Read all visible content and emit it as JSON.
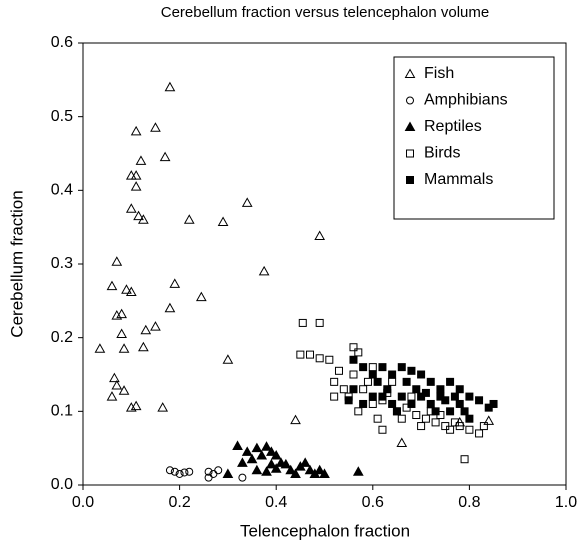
{
  "chart_data": {
    "type": "scatter",
    "title": "Cerebellum fraction versus telencephalon volume",
    "xlabel": "Telencephalon fraction",
    "ylabel": "Cerebellum fraction",
    "xlim": [
      0,
      1
    ],
    "ylim": [
      0,
      0.6
    ],
    "xticks": [
      {
        "value": 0,
        "label": "0.0"
      },
      0.2,
      0.4,
      0.6,
      0.8,
      {
        "value": 1,
        "label": "1.0"
      }
    ],
    "yticks": [
      {
        "value": 0,
        "label": "0.0"
      },
      0.1,
      0.2,
      0.3,
      0.4,
      0.5,
      0.6
    ],
    "grid": false,
    "legend": "upper right",
    "series": [
      {
        "name": "Fish",
        "marker": "triangle",
        "color": "#000000",
        "fill": "none",
        "x": [
          0.18,
          0.15,
          0.11,
          0.12,
          0.17,
          0.1,
          0.11,
          0.11,
          0.1,
          0.115,
          0.125,
          0.22,
          0.29,
          0.34,
          0.49,
          0.07,
          0.375,
          0.06,
          0.19,
          0.09,
          0.1,
          0.08,
          0.07,
          0.18,
          0.245,
          0.15,
          0.13,
          0.08,
          0.035,
          0.085,
          0.125,
          0.3,
          0.065,
          0.07,
          0.085,
          0.06,
          0.1,
          0.11,
          0.165,
          0.44,
          0.66,
          0.84,
          0.78
        ],
        "values": [
          0.54,
          0.485,
          0.48,
          0.44,
          0.445,
          0.42,
          0.42,
          0.405,
          0.375,
          0.365,
          0.36,
          0.36,
          0.357,
          0.383,
          0.338,
          0.303,
          0.29,
          0.27,
          0.273,
          0.265,
          0.262,
          0.232,
          0.23,
          0.24,
          0.255,
          0.215,
          0.21,
          0.205,
          0.185,
          0.185,
          0.187,
          0.17,
          0.145,
          0.135,
          0.128,
          0.12,
          0.105,
          0.107,
          0.105,
          0.088,
          0.057,
          0.087,
          0.085
        ]
      },
      {
        "name": "Amphibians",
        "marker": "circle",
        "color": "#000000",
        "fill": "none",
        "x": [
          0.18,
          0.19,
          0.21,
          0.22,
          0.26,
          0.27,
          0.28,
          0.26,
          0.33,
          0.2
        ],
        "values": [
          0.02,
          0.018,
          0.017,
          0.018,
          0.01,
          0.015,
          0.02,
          0.018,
          0.01,
          0.015
        ]
      },
      {
        "name": "Reptiles",
        "marker": "triangle",
        "color": "#000000",
        "fill": "#000000",
        "x": [
          0.32,
          0.34,
          0.36,
          0.38,
          0.39,
          0.37,
          0.35,
          0.33,
          0.4,
          0.41,
          0.42,
          0.36,
          0.38,
          0.4,
          0.43,
          0.45,
          0.47,
          0.48,
          0.49,
          0.44,
          0.5,
          0.57,
          0.3,
          0.39,
          0.46
        ],
        "values": [
          0.053,
          0.045,
          0.05,
          0.052,
          0.045,
          0.04,
          0.035,
          0.03,
          0.04,
          0.03,
          0.028,
          0.02,
          0.018,
          0.022,
          0.02,
          0.025,
          0.02,
          0.015,
          0.02,
          0.015,
          0.015,
          0.018,
          0.015,
          0.028,
          0.03
        ]
      },
      {
        "name": "Birds",
        "marker": "square",
        "color": "#000000",
        "fill": "none",
        "x": [
          0.455,
          0.49,
          0.45,
          0.47,
          0.49,
          0.51,
          0.56,
          0.57,
          0.6,
          0.52,
          0.54,
          0.55,
          0.52,
          0.58,
          0.6,
          0.62,
          0.63,
          0.65,
          0.66,
          0.68,
          0.7,
          0.72,
          0.74,
          0.75,
          0.76,
          0.78,
          0.8,
          0.82,
          0.79,
          0.62,
          0.56,
          0.59,
          0.64,
          0.67,
          0.71,
          0.57,
          0.61,
          0.77,
          0.69,
          0.53,
          0.83,
          0.73
        ],
        "values": [
          0.22,
          0.22,
          0.177,
          0.177,
          0.172,
          0.17,
          0.187,
          0.18,
          0.16,
          0.14,
          0.13,
          0.12,
          0.12,
          0.13,
          0.11,
          0.115,
          0.125,
          0.1,
          0.09,
          0.12,
          0.08,
          0.1,
          0.095,
          0.08,
          0.075,
          0.08,
          0.075,
          0.07,
          0.035,
          0.075,
          0.15,
          0.14,
          0.14,
          0.105,
          0.09,
          0.1,
          0.09,
          0.085,
          0.095,
          0.155,
          0.08,
          0.085
        ]
      },
      {
        "name": "Mammals",
        "marker": "square",
        "color": "#000000",
        "fill": "#000000",
        "x": [
          0.56,
          0.58,
          0.6,
          0.62,
          0.64,
          0.66,
          0.68,
          0.7,
          0.72,
          0.74,
          0.76,
          0.78,
          0.8,
          0.82,
          0.85,
          0.62,
          0.64,
          0.66,
          0.68,
          0.7,
          0.72,
          0.74,
          0.76,
          0.78,
          0.8,
          0.58,
          0.6,
          0.56,
          0.63,
          0.67,
          0.71,
          0.75,
          0.69,
          0.65,
          0.73,
          0.55,
          0.61,
          0.79,
          0.77,
          0.84
        ],
        "values": [
          0.17,
          0.16,
          0.15,
          0.16,
          0.15,
          0.16,
          0.155,
          0.15,
          0.14,
          0.13,
          0.14,
          0.13,
          0.12,
          0.115,
          0.11,
          0.12,
          0.11,
          0.12,
          0.11,
          0.12,
          0.11,
          0.12,
          0.1,
          0.11,
          0.09,
          0.11,
          0.12,
          0.13,
          0.13,
          0.14,
          0.125,
          0.115,
          0.13,
          0.1,
          0.1,
          0.115,
          0.14,
          0.1,
          0.12,
          0.105
        ]
      }
    ]
  }
}
